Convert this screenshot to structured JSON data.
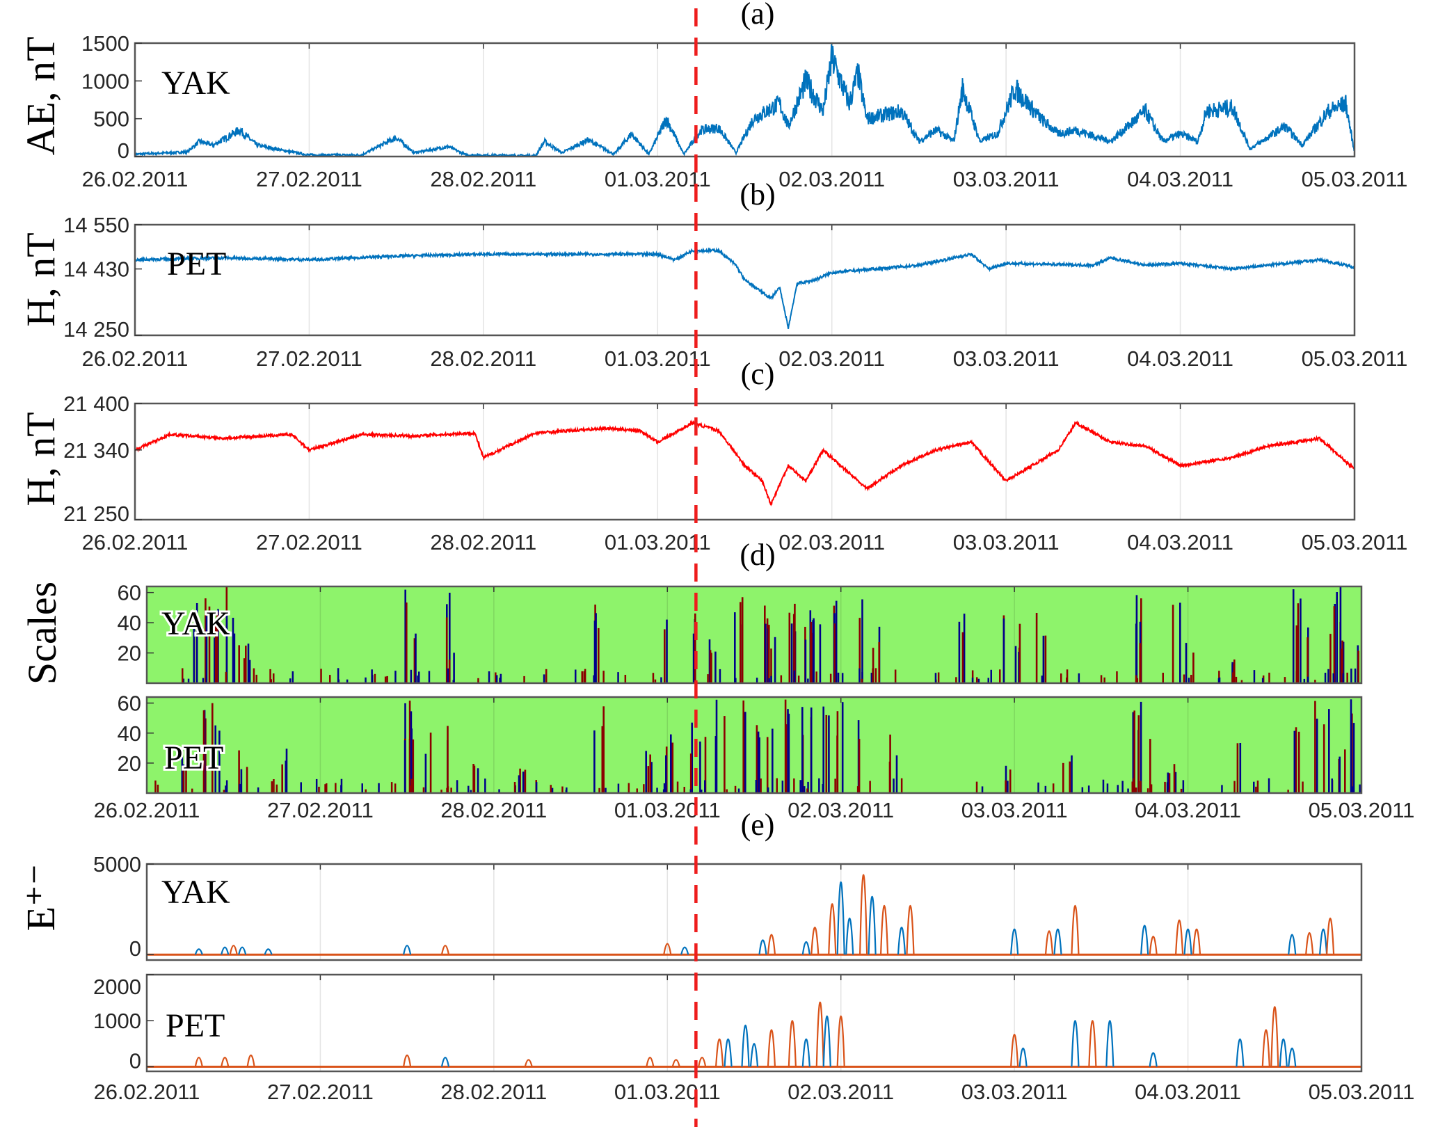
{
  "chart_data": [
    {
      "id": "a",
      "type": "line",
      "panel_label": "(a)",
      "ylabel": "AE, nT",
      "station": "YAK",
      "ylim": [
        0,
        1500
      ],
      "yticks": [
        0,
        500,
        1000,
        1500
      ],
      "ytick_labels": [
        "0",
        "500",
        "1000",
        "1500"
      ],
      "color": "#0072bd",
      "points": [
        [
          0,
          30
        ],
        [
          0.3,
          60
        ],
        [
          0.37,
          200
        ],
        [
          0.45,
          150
        ],
        [
          0.6,
          350
        ],
        [
          0.7,
          150
        ],
        [
          0.85,
          80
        ],
        [
          1,
          20
        ],
        [
          1.3,
          20
        ],
        [
          1.5,
          250
        ],
        [
          1.6,
          50
        ],
        [
          1.8,
          130
        ],
        [
          1.9,
          20
        ],
        [
          2.3,
          10
        ],
        [
          2.35,
          200
        ],
        [
          2.45,
          50
        ],
        [
          2.6,
          220
        ],
        [
          2.75,
          30
        ],
        [
          2.85,
          300
        ],
        [
          2.95,
          30
        ],
        [
          3.05,
          500
        ],
        [
          3.15,
          30
        ],
        [
          3.25,
          350
        ],
        [
          3.35,
          380
        ],
        [
          3.45,
          50
        ],
        [
          3.55,
          500
        ],
        [
          3.7,
          700
        ],
        [
          3.75,
          400
        ],
        [
          3.85,
          1000
        ],
        [
          3.95,
          600
        ],
        [
          4.0,
          1300
        ],
        [
          4.1,
          700
        ],
        [
          4.15,
          1100
        ],
        [
          4.2,
          500
        ],
        [
          4.4,
          600
        ],
        [
          4.5,
          200
        ],
        [
          4.6,
          350
        ],
        [
          4.7,
          200
        ],
        [
          4.75,
          900
        ],
        [
          4.85,
          200
        ],
        [
          4.95,
          300
        ],
        [
          5.05,
          900
        ],
        [
          5.2,
          500
        ],
        [
          5.3,
          300
        ],
        [
          5.4,
          350
        ],
        [
          5.6,
          200
        ],
        [
          5.8,
          600
        ],
        [
          5.9,
          200
        ],
        [
          6.0,
          300
        ],
        [
          6.1,
          200
        ],
        [
          6.15,
          600
        ],
        [
          6.3,
          650
        ],
        [
          6.4,
          100
        ],
        [
          6.6,
          400
        ],
        [
          6.7,
          150
        ],
        [
          6.85,
          600
        ],
        [
          6.95,
          700
        ],
        [
          7,
          50
        ]
      ]
    },
    {
      "id": "b",
      "type": "line",
      "panel_label": "(b)",
      "ylabel": "H, nT",
      "station": "PET",
      "ylim": [
        14250,
        14550
      ],
      "yticks": [
        14250,
        14430,
        14550
      ],
      "ytick_labels": [
        "14 250",
        "14 430",
        "14 550"
      ],
      "color": "#0072bd",
      "points": [
        [
          0,
          14455
        ],
        [
          0.5,
          14460
        ],
        [
          1,
          14455
        ],
        [
          1.5,
          14465
        ],
        [
          2,
          14470
        ],
        [
          2.5,
          14470
        ],
        [
          3,
          14470
        ],
        [
          3.1,
          14455
        ],
        [
          3.2,
          14480
        ],
        [
          3.35,
          14480
        ],
        [
          3.45,
          14440
        ],
        [
          3.5,
          14400
        ],
        [
          3.65,
          14350
        ],
        [
          3.7,
          14380
        ],
        [
          3.75,
          14270
        ],
        [
          3.8,
          14390
        ],
        [
          3.9,
          14400
        ],
        [
          4.0,
          14420
        ],
        [
          4.5,
          14440
        ],
        [
          4.8,
          14470
        ],
        [
          4.9,
          14430
        ],
        [
          5.0,
          14445
        ],
        [
          5.5,
          14440
        ],
        [
          5.6,
          14460
        ],
        [
          5.8,
          14440
        ],
        [
          6,
          14445
        ],
        [
          6.3,
          14430
        ],
        [
          6.5,
          14440
        ],
        [
          6.8,
          14455
        ],
        [
          7,
          14435
        ]
      ]
    },
    {
      "id": "c",
      "type": "line",
      "panel_label": "(c)",
      "ylabel": "H, nT",
      "station": "",
      "ylim": [
        21250,
        21400
      ],
      "yticks": [
        21250,
        21340,
        21400
      ],
      "ytick_labels": [
        "21 250",
        "21 340",
        "21 400"
      ],
      "color": "#ff0000",
      "points": [
        [
          0,
          21340
        ],
        [
          0.2,
          21360
        ],
        [
          0.5,
          21355
        ],
        [
          0.9,
          21360
        ],
        [
          1,
          21340
        ],
        [
          1.3,
          21360
        ],
        [
          1.6,
          21358
        ],
        [
          1.95,
          21362
        ],
        [
          2,
          21330
        ],
        [
          2.3,
          21362
        ],
        [
          2.7,
          21368
        ],
        [
          2.9,
          21365
        ],
        [
          3,
          21350
        ],
        [
          3.2,
          21375
        ],
        [
          3.35,
          21365
        ],
        [
          3.5,
          21320
        ],
        [
          3.6,
          21300
        ],
        [
          3.65,
          21270
        ],
        [
          3.75,
          21320
        ],
        [
          3.85,
          21300
        ],
        [
          3.95,
          21340
        ],
        [
          4.05,
          21320
        ],
        [
          4.2,
          21290
        ],
        [
          4.4,
          21320
        ],
        [
          4.6,
          21340
        ],
        [
          4.8,
          21350
        ],
        [
          5,
          21300
        ],
        [
          5.3,
          21340
        ],
        [
          5.4,
          21375
        ],
        [
          5.6,
          21350
        ],
        [
          5.8,
          21345
        ],
        [
          6,
          21320
        ],
        [
          6.3,
          21330
        ],
        [
          6.5,
          21345
        ],
        [
          6.8,
          21355
        ],
        [
          7,
          21315
        ]
      ]
    },
    {
      "id": "d1",
      "type": "heatmap",
      "panel_label": "(d)",
      "ylabel": "Scales",
      "station": "YAK",
      "ylim": [
        0,
        64
      ],
      "yticks": [
        20,
        40,
        60
      ],
      "ytick_labels": [
        "20",
        "40",
        "60"
      ],
      "background": "#8ef36b",
      "colors": [
        "#00008b",
        "#8b0000"
      ],
      "events": [
        [
          0.28,
          64
        ],
        [
          0.33,
          64
        ],
        [
          0.38,
          55
        ],
        [
          0.45,
          64
        ],
        [
          0.52,
          45
        ],
        [
          0.58,
          30
        ],
        [
          1.5,
          64
        ],
        [
          1.52,
          40
        ],
        [
          1.72,
          64
        ],
        [
          1.74,
          30
        ],
        [
          2.3,
          10
        ],
        [
          2.6,
          60
        ],
        [
          3.82,
          64
        ],
        [
          3.0,
          60
        ],
        [
          3.15,
          50
        ],
        [
          3.25,
          30
        ],
        [
          3.4,
          64
        ],
        [
          3.55,
          64
        ],
        [
          3.6,
          40
        ],
        [
          3.7,
          64
        ],
        [
          3.75,
          64
        ],
        [
          3.8,
          55
        ],
        [
          3.85,
          64
        ],
        [
          3.95,
          64
        ],
        [
          4.1,
          64
        ],
        [
          4.2,
          40
        ],
        [
          4.7,
          60
        ],
        [
          4.95,
          64
        ],
        [
          5.0,
          40
        ],
        [
          5.15,
          50
        ],
        [
          5.7,
          64
        ],
        [
          5.72,
          40
        ],
        [
          5.93,
          64
        ],
        [
          6.0,
          40
        ],
        [
          6.25,
          20
        ],
        [
          6.62,
          64
        ],
        [
          6.7,
          40
        ],
        [
          6.82,
          64
        ],
        [
          6.85,
          64
        ],
        [
          6.9,
          30
        ],
        [
          6.95,
          30
        ]
      ]
    },
    {
      "id": "d2",
      "type": "heatmap",
      "panel_label": "",
      "ylabel": "",
      "station": "PET",
      "ylim": [
        0,
        64
      ],
      "yticks": [
        20,
        40,
        60
      ],
      "ytick_labels": [
        "20",
        "40",
        "60"
      ],
      "background": "#8ef36b",
      "colors": [
        "#00008b",
        "#8b0000"
      ],
      "events": [
        [
          0.2,
          30
        ],
        [
          0.33,
          64
        ],
        [
          0.4,
          64
        ],
        [
          0.55,
          30
        ],
        [
          0.8,
          30
        ],
        [
          1.5,
          64
        ],
        [
          1.52,
          60
        ],
        [
          1.62,
          50
        ],
        [
          1.72,
          64
        ],
        [
          1.9,
          30
        ],
        [
          2.15,
          20
        ],
        [
          2.6,
          60
        ],
        [
          2.9,
          30
        ],
        [
          3.0,
          40
        ],
        [
          3.12,
          50
        ],
        [
          3.2,
          40
        ],
        [
          3.3,
          64
        ],
        [
          3.42,
          64
        ],
        [
          3.5,
          64
        ],
        [
          3.58,
          50
        ],
        [
          3.7,
          64
        ],
        [
          3.8,
          64
        ],
        [
          3.9,
          60
        ],
        [
          4.0,
          64
        ],
        [
          4.1,
          50
        ],
        [
          4.3,
          40
        ],
        [
          4.95,
          30
        ],
        [
          5.3,
          40
        ],
        [
          5.7,
          64
        ],
        [
          5.75,
          64
        ],
        [
          5.9,
          20
        ],
        [
          6.3,
          40
        ],
        [
          6.62,
          64
        ],
        [
          6.72,
          64
        ],
        [
          6.8,
          64
        ],
        [
          6.88,
          40
        ],
        [
          6.95,
          64
        ]
      ]
    },
    {
      "id": "e1",
      "type": "line",
      "panel_label": "(e)",
      "ylabel": "E⁺⁻",
      "station": "YAK",
      "ylim": [
        -300,
        5000
      ],
      "yticks": [
        0,
        5000
      ],
      "ytick_labels": [
        "0",
        "5000"
      ],
      "series_colors": [
        "#0072bd",
        "#d95319"
      ],
      "peaks": [
        [
          0.3,
          300,
          0
        ],
        [
          0.45,
          400,
          0
        ],
        [
          0.5,
          500,
          1
        ],
        [
          0.55,
          400,
          0
        ],
        [
          0.7,
          300,
          0
        ],
        [
          1.5,
          500,
          0
        ],
        [
          1.72,
          500,
          1
        ],
        [
          3.0,
          600,
          1
        ],
        [
          3.1,
          400,
          0
        ],
        [
          3.55,
          800,
          0
        ],
        [
          3.6,
          1100,
          1
        ],
        [
          3.8,
          700,
          0
        ],
        [
          3.85,
          1500,
          1
        ],
        [
          3.95,
          2800,
          1
        ],
        [
          4.0,
          4000,
          0
        ],
        [
          4.05,
          2000,
          0
        ],
        [
          4.13,
          4400,
          1
        ],
        [
          4.18,
          3200,
          0
        ],
        [
          4.25,
          2700,
          1
        ],
        [
          4.35,
          1500,
          0
        ],
        [
          4.4,
          2700,
          1
        ],
        [
          5.0,
          1400,
          0
        ],
        [
          5.2,
          1300,
          1
        ],
        [
          5.25,
          1400,
          0
        ],
        [
          5.35,
          2700,
          1
        ],
        [
          5.75,
          1600,
          0
        ],
        [
          5.8,
          1000,
          1
        ],
        [
          5.95,
          1900,
          1
        ],
        [
          6.0,
          1400,
          0
        ],
        [
          6.05,
          1400,
          1
        ],
        [
          6.6,
          1100,
          0
        ],
        [
          6.7,
          1200,
          1
        ],
        [
          6.78,
          1400,
          0
        ],
        [
          6.82,
          2000,
          1
        ]
      ]
    },
    {
      "id": "e2",
      "type": "line",
      "panel_label": "",
      "ylabel": "",
      "station": "PET",
      "ylim": [
        -100,
        2000
      ],
      "yticks": [
        0,
        1000,
        2000
      ],
      "ytick_labels": [
        "0",
        "1000",
        "2000"
      ],
      "series_colors": [
        "#0072bd",
        "#d95319"
      ],
      "peaks": [
        [
          0.3,
          200,
          1
        ],
        [
          0.45,
          200,
          1
        ],
        [
          0.6,
          250,
          1
        ],
        [
          1.5,
          250,
          1
        ],
        [
          1.72,
          200,
          0
        ],
        [
          2.2,
          150,
          1
        ],
        [
          2.9,
          200,
          1
        ],
        [
          3.05,
          150,
          1
        ],
        [
          3.2,
          200,
          1
        ],
        [
          3.3,
          600,
          1
        ],
        [
          3.35,
          600,
          0
        ],
        [
          3.45,
          900,
          0
        ],
        [
          3.5,
          500,
          0
        ],
        [
          3.6,
          800,
          1
        ],
        [
          3.72,
          1000,
          1
        ],
        [
          3.8,
          600,
          0
        ],
        [
          3.88,
          1400,
          1
        ],
        [
          3.92,
          1100,
          0
        ],
        [
          4.0,
          1100,
          1
        ],
        [
          5.0,
          700,
          1
        ],
        [
          5.05,
          400,
          0
        ],
        [
          5.35,
          1000,
          0
        ],
        [
          5.45,
          1000,
          1
        ],
        [
          5.55,
          1000,
          0
        ],
        [
          5.8,
          300,
          0
        ],
        [
          6.3,
          600,
          0
        ],
        [
          6.45,
          800,
          1
        ],
        [
          6.5,
          1300,
          1
        ],
        [
          6.55,
          600,
          0
        ],
        [
          6.6,
          400,
          0
        ]
      ]
    }
  ],
  "x_axis": {
    "range_days": [
      0,
      7
    ],
    "tick_labels": [
      "26.02.2011",
      "27.02.2011",
      "28.02.2011",
      "01.03.2011",
      "02.03.2011",
      "03.03.2011",
      "04.03.2011",
      "05.03.2011"
    ]
  },
  "event_marker": {
    "day": 3.22,
    "color": "#ee1c1c",
    "style": "dashed"
  }
}
